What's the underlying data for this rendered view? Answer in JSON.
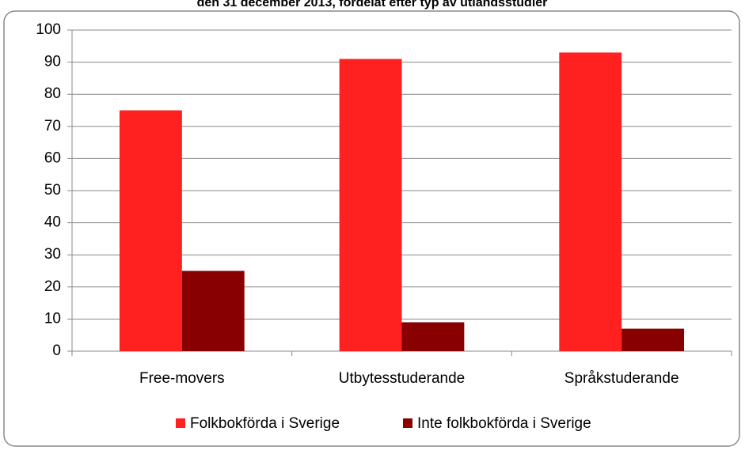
{
  "chart_data": {
    "type": "bar",
    "title": "den 31 december 2013, fördelat efter typ av utlandsstudier",
    "categories": [
      "Free-movers",
      "Utbytesstuderande",
      "Språkstuderande"
    ],
    "series": [
      {
        "name": "Folkbokförda i Sverige",
        "color": "#ff2020",
        "values": [
          75,
          91,
          93
        ]
      },
      {
        "name": "Inte folkbokförda i Sverige",
        "color": "#880000",
        "values": [
          25,
          9,
          7
        ]
      }
    ],
    "ylim": [
      0,
      100
    ],
    "yticks": [
      0,
      10,
      20,
      30,
      40,
      50,
      60,
      70,
      80,
      90,
      100
    ],
    "grid": true,
    "legend": "bottom"
  }
}
